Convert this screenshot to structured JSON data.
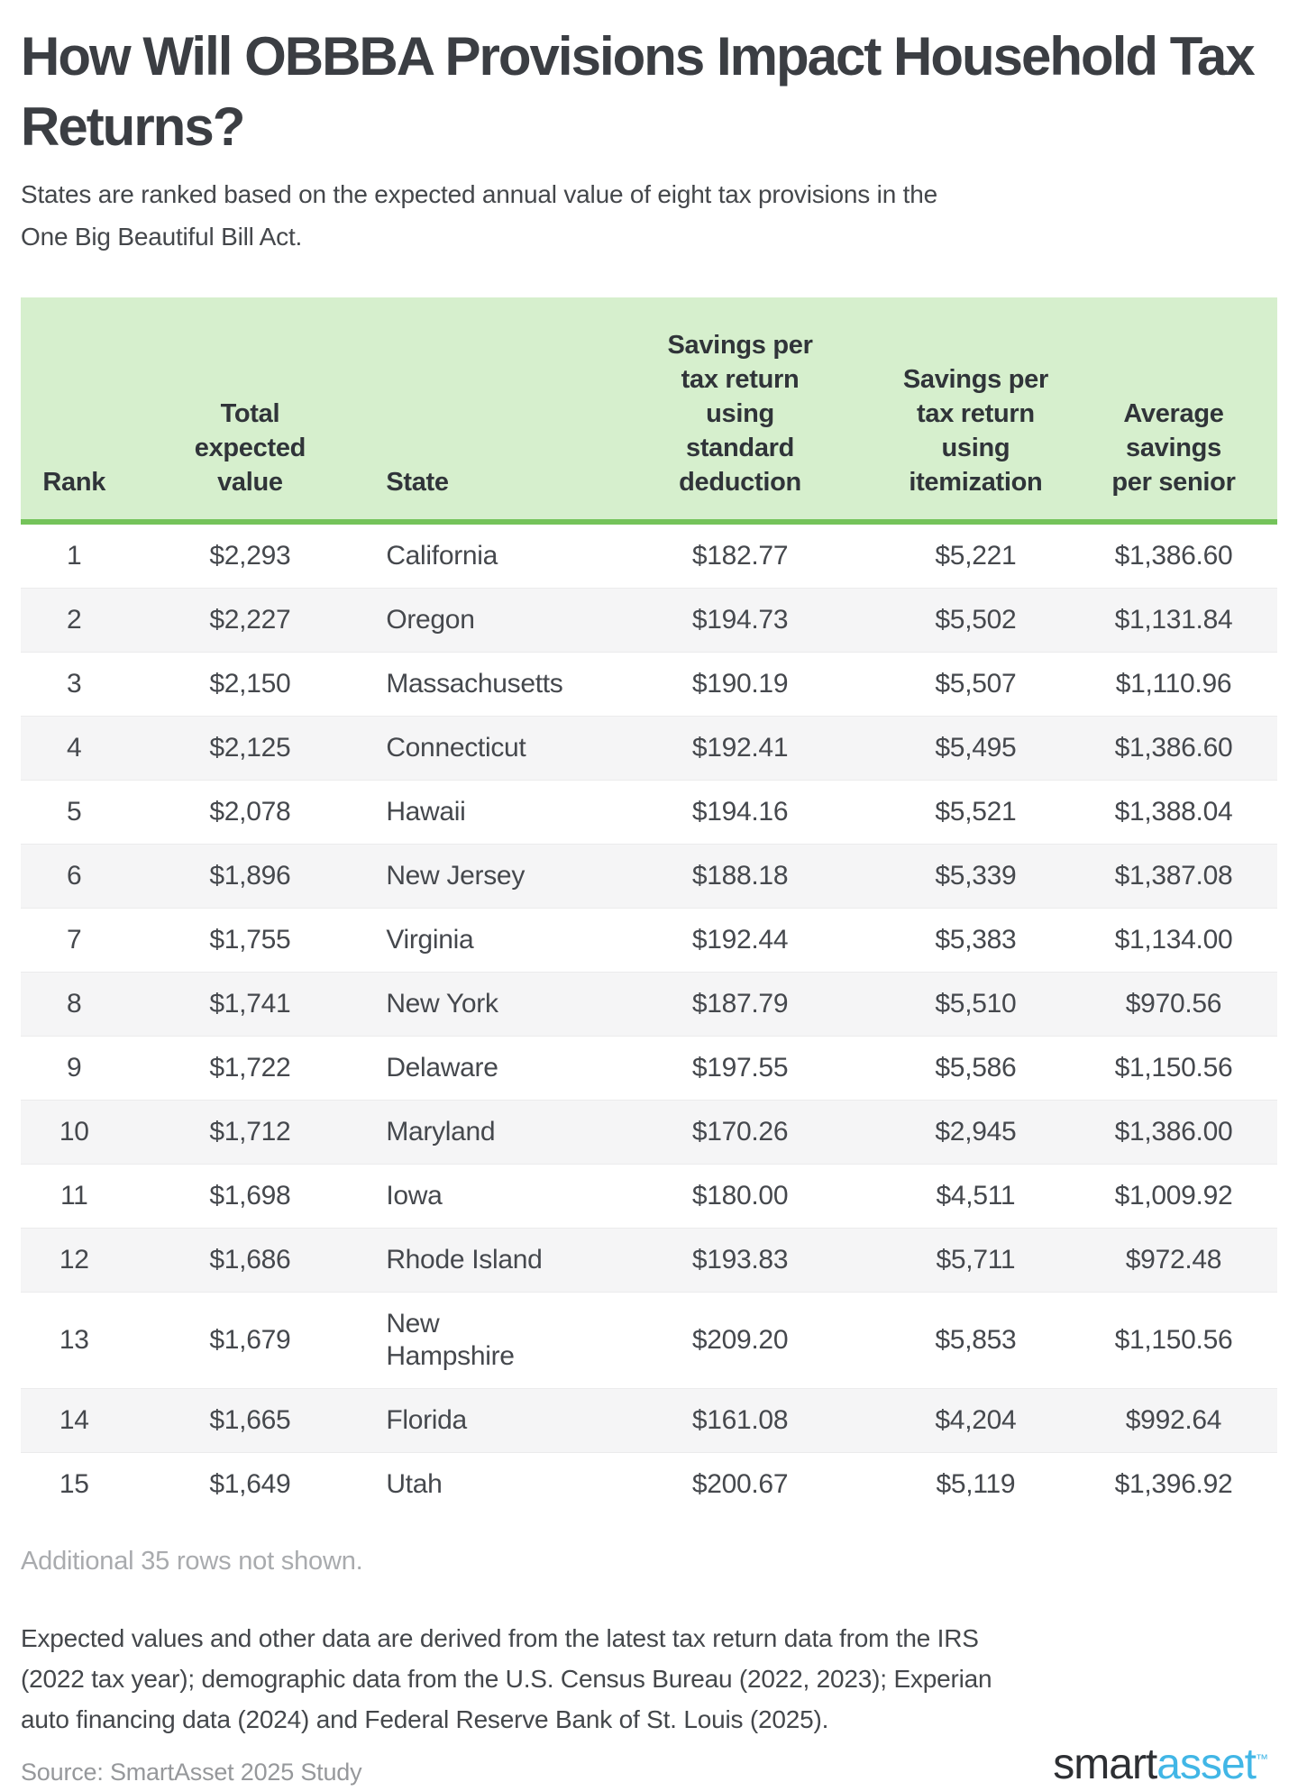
{
  "header": {
    "title": "How Will OBBBA Provisions Impact Household Tax\nReturns?",
    "subtitle": "States are ranked based on the expected annual value of eight tax provisions in the\nOne Big Beautiful Bill Act."
  },
  "colors": {
    "header_bg_green": "#d6efcd",
    "header_border_green": "#74c35a",
    "alt_row_gray": "#f5f5f6",
    "logo_blue": "#41b6e6",
    "text_dark": "#3b3e43",
    "muted_gray": "#a9abae"
  },
  "table": {
    "columns": [
      {
        "key": "rank",
        "label": "Rank"
      },
      {
        "key": "total",
        "label": "Total\nexpected\nvalue"
      },
      {
        "key": "state",
        "label": "State"
      },
      {
        "key": "std",
        "label": "Savings per\ntax return\nusing\nstandard\ndeduction"
      },
      {
        "key": "item",
        "label": "Savings per\ntax return\nusing\nitemization"
      },
      {
        "key": "senior",
        "label": "Average\nsavings\nper senior"
      }
    ],
    "rows": [
      {
        "rank": "1",
        "total": "$2,293",
        "state": "California",
        "std": "$182.77",
        "item": "$5,221",
        "senior": "$1,386.60"
      },
      {
        "rank": "2",
        "total": "$2,227",
        "state": "Oregon",
        "std": "$194.73",
        "item": "$5,502",
        "senior": "$1,131.84"
      },
      {
        "rank": "3",
        "total": "$2,150",
        "state": "Massachusetts",
        "std": "$190.19",
        "item": "$5,507",
        "senior": "$1,110.96"
      },
      {
        "rank": "4",
        "total": "$2,125",
        "state": "Connecticut",
        "std": "$192.41",
        "item": "$5,495",
        "senior": "$1,386.60"
      },
      {
        "rank": "5",
        "total": "$2,078",
        "state": "Hawaii",
        "std": "$194.16",
        "item": "$5,521",
        "senior": "$1,388.04"
      },
      {
        "rank": "6",
        "total": "$1,896",
        "state": "New Jersey",
        "std": "$188.18",
        "item": "$5,339",
        "senior": "$1,387.08"
      },
      {
        "rank": "7",
        "total": "$1,755",
        "state": "Virginia",
        "std": "$192.44",
        "item": "$5,383",
        "senior": "$1,134.00"
      },
      {
        "rank": "8",
        "total": "$1,741",
        "state": "New York",
        "std": "$187.79",
        "item": "$5,510",
        "senior": "$970.56"
      },
      {
        "rank": "9",
        "total": "$1,722",
        "state": "Delaware",
        "std": "$197.55",
        "item": "$5,586",
        "senior": "$1,150.56"
      },
      {
        "rank": "10",
        "total": "$1,712",
        "state": "Maryland",
        "std": "$170.26",
        "item": "$2,945",
        "senior": "$1,386.00"
      },
      {
        "rank": "11",
        "total": "$1,698",
        "state": "Iowa",
        "std": "$180.00",
        "item": "$4,511",
        "senior": "$1,009.92"
      },
      {
        "rank": "12",
        "total": "$1,686",
        "state": "Rhode Island",
        "std": "$193.83",
        "item": "$5,711",
        "senior": "$972.48"
      },
      {
        "rank": "13",
        "total": "$1,679",
        "state": "New\nHampshire",
        "std": "$209.20",
        "item": "$5,853",
        "senior": "$1,150.56"
      },
      {
        "rank": "14",
        "total": "$1,665",
        "state": "Florida",
        "std": "$161.08",
        "item": "$4,204",
        "senior": "$992.64"
      },
      {
        "rank": "15",
        "total": "$1,649",
        "state": "Utah",
        "std": "$200.67",
        "item": "$5,119",
        "senior": "$1,396.92"
      }
    ]
  },
  "footer": {
    "rows_note": "Additional 35 rows not shown.",
    "methodology": "Expected values and other data are derived from the latest tax return data from the IRS\n(2022 tax year); demographic data from the U.S. Census Bureau (2022, 2023); Experian\nauto financing data (2024) and Federal Reserve Bank of St. Louis (2025).",
    "source": "Source: SmartAsset 2025 Study",
    "logo": {
      "part1": "smart",
      "part2": "asset",
      "tm": "™"
    }
  },
  "chart_data": {
    "type": "table",
    "title": "How Will OBBBA Provisions Impact Household Tax Returns?",
    "subtitle": "States are ranked based on the expected annual value of eight tax provisions in the One Big Beautiful Bill Act.",
    "columns": [
      "Rank",
      "Total expected value",
      "State",
      "Savings per tax return using standard deduction",
      "Savings per tax return using itemization",
      "Average savings per senior"
    ],
    "rows": [
      [
        1,
        2293,
        "California",
        182.77,
        5221,
        1386.6
      ],
      [
        2,
        2227,
        "Oregon",
        194.73,
        5502,
        1131.84
      ],
      [
        3,
        2150,
        "Massachusetts",
        190.19,
        5507,
        1110.96
      ],
      [
        4,
        2125,
        "Connecticut",
        192.41,
        5495,
        1386.6
      ],
      [
        5,
        2078,
        "Hawaii",
        194.16,
        5521,
        1388.04
      ],
      [
        6,
        1896,
        "New Jersey",
        188.18,
        5339,
        1387.08
      ],
      [
        7,
        1755,
        "Virginia",
        192.44,
        5383,
        1134.0
      ],
      [
        8,
        1741,
        "New York",
        187.79,
        5510,
        970.56
      ],
      [
        9,
        1722,
        "Delaware",
        197.55,
        5586,
        1150.56
      ],
      [
        10,
        1712,
        "Maryland",
        170.26,
        2945,
        1386.0
      ],
      [
        11,
        1698,
        "Iowa",
        180.0,
        4511,
        1009.92
      ],
      [
        12,
        1686,
        "Rhode Island",
        193.83,
        5711,
        972.48
      ],
      [
        13,
        1679,
        "New Hampshire",
        209.2,
        5853,
        1150.56
      ],
      [
        14,
        1665,
        "Florida",
        161.08,
        4204,
        992.64
      ],
      [
        15,
        1649,
        "Utah",
        200.67,
        5119,
        1396.92
      ]
    ],
    "note": "Additional 35 rows not shown.",
    "source": "SmartAsset 2025 Study"
  }
}
